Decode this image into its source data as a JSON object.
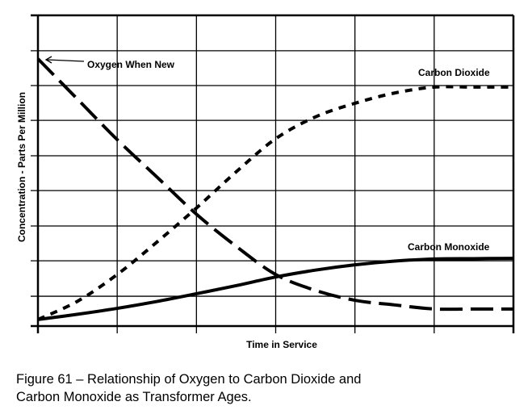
{
  "chart_data": {
    "type": "line",
    "title": "",
    "xlabel": "Time in Service",
    "ylabel": "Concentration - Parts Per Million",
    "xlim": [
      0,
      6
    ],
    "ylim": [
      0,
      100
    ],
    "x_gridlines": [
      0,
      1,
      2,
      3,
      4,
      5,
      6
    ],
    "y_gridlines": [
      0,
      9.6,
      21.0,
      32.2,
      43.6,
      54.8,
      66.2,
      77.4,
      88.6,
      100
    ],
    "grid": true,
    "x": [
      0,
      0.5,
      1,
      1.5,
      2,
      2.5,
      3,
      3.5,
      4,
      4.5,
      5,
      5.5,
      6
    ],
    "series": [
      {
        "name": "Oxygen",
        "style": "long-dash",
        "values": [
          86,
          73,
          60,
          48,
          36,
          25.7,
          16.6,
          11.5,
          8.3,
          6.8,
          5.5,
          5.5,
          5.5
        ]
      },
      {
        "name": "Carbon Dioxide",
        "style": "short-dash",
        "values": [
          2.1,
          8,
          16.6,
          27,
          38,
          49.6,
          60.3,
          67.3,
          71.7,
          75,
          76.9,
          76.9,
          76.9
        ]
      },
      {
        "name": "Carbon Monoxide",
        "style": "solid",
        "values": [
          2.1,
          3.8,
          5.7,
          7.9,
          10.4,
          13,
          15.8,
          18,
          19.7,
          20.9,
          21.6,
          21.7,
          21.8
        ]
      }
    ],
    "annotations": [
      {
        "text": "Oxygen When New",
        "series": "Oxygen",
        "arrow": true
      },
      {
        "text": "Carbon Dioxide",
        "series": "Carbon Dioxide"
      },
      {
        "text": "Carbon Monoxide",
        "series": "Carbon Monoxide"
      }
    ]
  },
  "caption": {
    "line1": "Figure 61 – Relationship of Oxygen to Carbon Dioxide and",
    "line2": "Carbon Monoxide as Transformer Ages."
  }
}
